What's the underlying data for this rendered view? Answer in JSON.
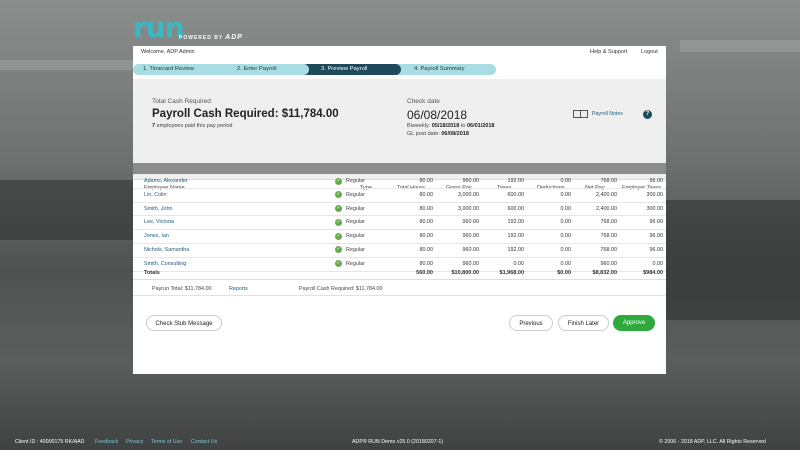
{
  "brand": {
    "logo_text": "run",
    "powered_by": "POWERED BY",
    "adp": "ADP"
  },
  "topbar": {
    "welcome": "Welcome, ADP Admin",
    "help": "Help & Support",
    "logout": "Logout"
  },
  "steps": [
    "1.  Timecard Review",
    "2.  Enter Payroll",
    "3.  Preview Payroll",
    "4.  Payroll Summary"
  ],
  "summary": {
    "total_label": "Total Cash Required",
    "total_value": "Payroll Cash Required: $11,784.00",
    "employees_count": "7",
    "employees_text": " employees paid this pay period",
    "check_date_label": "Check date",
    "check_date": "06/08/2018",
    "biweekly_label": "Biweekly: ",
    "range_from": "05/18/2018",
    "range_to_word": " to ",
    "range_to": "06/01/2018",
    "gl_label": "GL post date: ",
    "gl_date": "06/08/2018",
    "notes_label": "Payroll Notes",
    "help_icon": "?"
  },
  "table": {
    "headers": [
      "Employee Name",
      "Type",
      "Total Hours",
      "Gross Pay",
      "Taxes",
      "Deductions",
      "Net Pay",
      "Employer Taxes"
    ],
    "rows": [
      {
        "name": "Adams, Alexander",
        "type": "Regular",
        "hours": "80.00",
        "gross": "960.00",
        "taxes": "192.00",
        "deductions": "0.00",
        "net": "768.00",
        "employer": "96.00"
      },
      {
        "name": "Lin, Colin",
        "type": "Regular",
        "hours": "80.00",
        "gross": "3,000.00",
        "taxes": "600.00",
        "deductions": "0.00",
        "net": "2,400.00",
        "employer": "300.00"
      },
      {
        "name": "Smith, John",
        "type": "Regular",
        "hours": "80.00",
        "gross": "3,000.00",
        "taxes": "600.00",
        "deductions": "0.00",
        "net": "2,400.00",
        "employer": "300.00"
      },
      {
        "name": "Lee, Victoria",
        "type": "Regular",
        "hours": "80.00",
        "gross": "960.00",
        "taxes": "192.00",
        "deductions": "0.00",
        "net": "768.00",
        "employer": "96.00"
      },
      {
        "name": "Jones, Ian",
        "type": "Regular",
        "hours": "80.00",
        "gross": "960.00",
        "taxes": "192.00",
        "deductions": "0.00",
        "net": "768.00",
        "employer": "96.00"
      },
      {
        "name": "Nichols, Samantha",
        "type": "Regular",
        "hours": "80.00",
        "gross": "960.00",
        "taxes": "192.00",
        "deductions": "0.00",
        "net": "768.00",
        "employer": "96.00"
      },
      {
        "name": "Smith, Consulting",
        "type": "Regular",
        "hours": "80.00",
        "gross": "960.00",
        "taxes": "0.00",
        "deductions": "0.00",
        "net": "960.00",
        "employer": "0.00"
      }
    ],
    "totals": {
      "label": "Totals",
      "hours": "560.00",
      "gross": "$10,800.00",
      "taxes": "$1,968.00",
      "deductions": "$0.00",
      "net": "$8,832.00",
      "employer": "$984.00"
    }
  },
  "footer_line": {
    "payrun_total": "Payrun Total: $11,784.00",
    "reports": "Reports",
    "cash_required": "Payroll Cash Required: $11,784.00"
  },
  "actions": {
    "check_stub": "Check Stub Message",
    "previous": "Previous",
    "finish_later": "Finish Later",
    "approve": "Approve"
  },
  "bottom_bar": {
    "client_id": "Client ID : 40000175 RK/AAD",
    "feedback": "Feedback",
    "privacy": "Privacy",
    "terms": "Terms of Use",
    "contact": "Contact Us",
    "version": "ADP® RUN Demo v25.0 (20180207-1)",
    "copyright": "© 2006 - 2018 ADP, LLC. All Rights Reserved"
  },
  "colors": {
    "accent": "#3ab8c4",
    "step_active": "#1e4a5c",
    "step_inactive": "#a7dde3",
    "approve": "#2eaa3c",
    "link": "#1e5a7a"
  }
}
